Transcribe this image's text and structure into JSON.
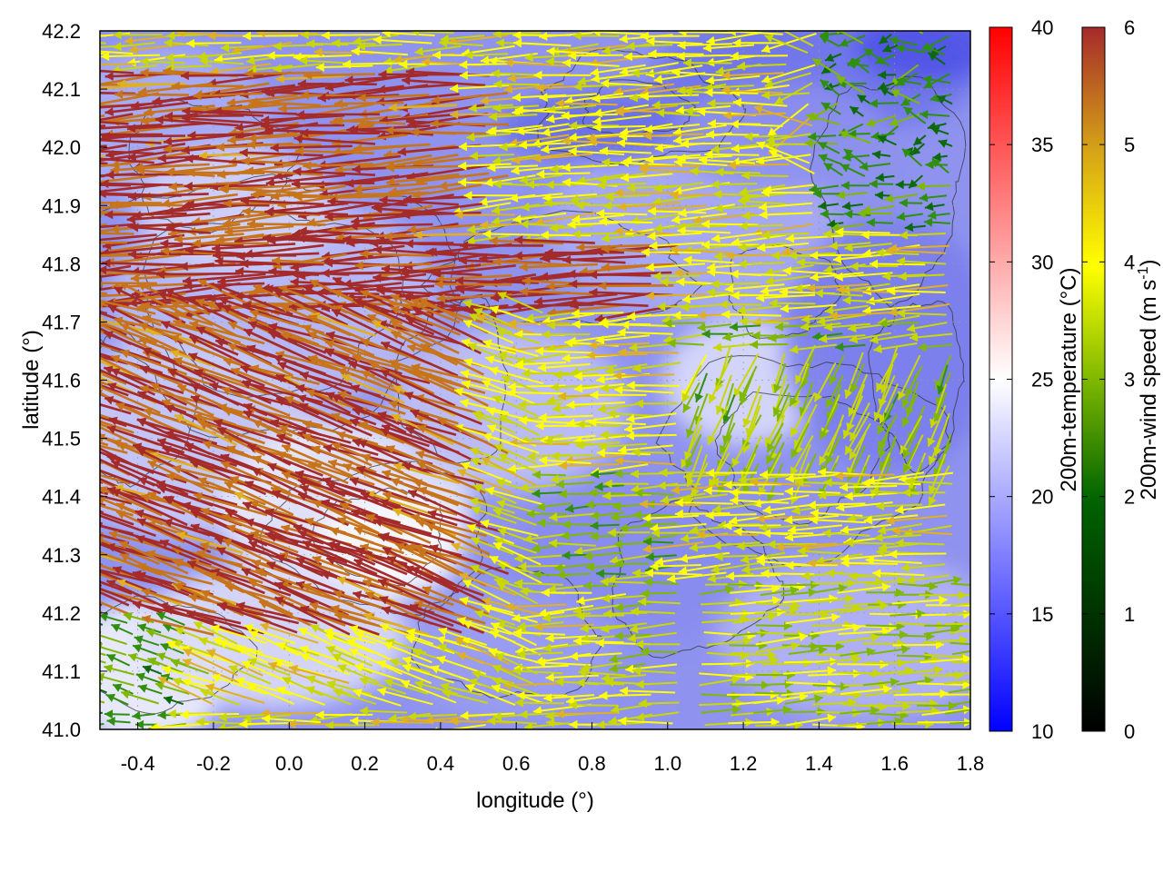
{
  "chart_data": {
    "type": "heatmap",
    "description_type": "vector field (wind arrows) over temperature heatmap with contour lines",
    "xlabel": "longitude (°)",
    "ylabel": "latitude (°)",
    "xlim": [
      -0.5,
      1.8
    ],
    "ylim": [
      41.0,
      42.2
    ],
    "xticks": [
      "-0.4",
      "-0.2",
      "0.0",
      "0.2",
      "0.4",
      "0.6",
      "0.8",
      "1.0",
      "1.2",
      "1.4",
      "1.6",
      "1.8"
    ],
    "yticks": [
      "41.0",
      "41.1",
      "41.2",
      "41.3",
      "41.4",
      "41.5",
      "41.6",
      "41.7",
      "41.8",
      "41.9",
      "42.0",
      "42.1",
      "42.2"
    ],
    "grid": true,
    "temperature_colorbar": {
      "label": "200m-temperature (°C)",
      "range": [
        10,
        40
      ],
      "ticks": [
        "10",
        "15",
        "20",
        "25",
        "30",
        "35",
        "40"
      ],
      "colors": [
        "#0000ff",
        "#ffffff",
        "#ff0000"
      ]
    },
    "wind_colorbar": {
      "label": "200m-wind speed (m s-1)",
      "label_main": "200m-wind speed (m s",
      "label_sup": "-1",
      "label_end": ")",
      "range": [
        0,
        6
      ],
      "ticks": [
        "0",
        "1",
        "2",
        "3",
        "4",
        "5",
        "6"
      ],
      "colors": [
        "#000000",
        "#006400",
        "#8fbc00",
        "#ffff00",
        "#d4a017",
        "#b22222"
      ]
    },
    "field_summary": {
      "temperature_range_shown": [
        14,
        22
      ],
      "wind_dominant_direction": "westward (from east)",
      "strong_wind_zone": "western half and central band near latitude 41.75, speeds near 6 m s-1",
      "weak_wind_zone": "northeast corner and southwest corner, speeds 0-2 m s-1"
    }
  }
}
